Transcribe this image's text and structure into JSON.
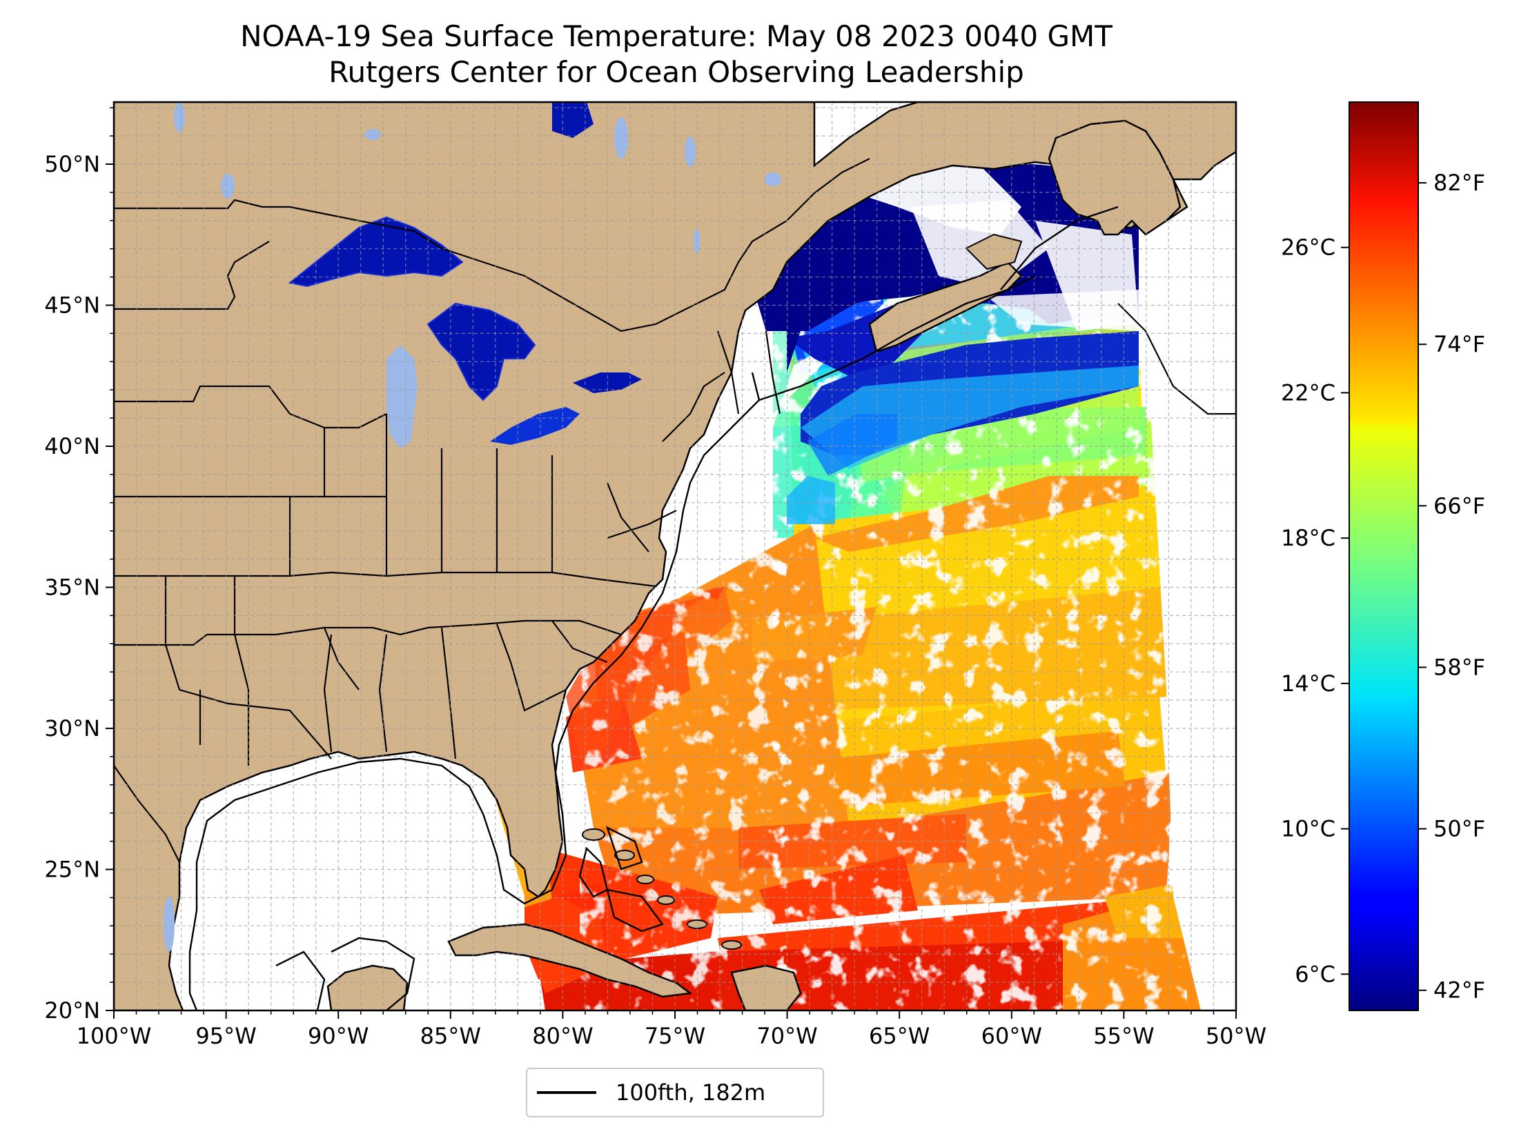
{
  "title": "NOAA-19 Sea Surface Temperature: May 08 2023 0040 GMT",
  "subtitle": "Rutgers Center for Ocean Observing Leadership",
  "map": {
    "lon_range": [
      -100,
      -50
    ],
    "lat_range": [
      20,
      52.2
    ],
    "grid": "on",
    "land_color": "#d2b48c",
    "lake_color": "#9bb8e8",
    "lon_ticks": [
      {
        "value": -100,
        "label": "100°W"
      },
      {
        "value": -95,
        "label": "95°W"
      },
      {
        "value": -90,
        "label": "90°W"
      },
      {
        "value": -85,
        "label": "85°W"
      },
      {
        "value": -80,
        "label": "80°W"
      },
      {
        "value": -75,
        "label": "75°W"
      },
      {
        "value": -70,
        "label": "70°W"
      },
      {
        "value": -65,
        "label": "65°W"
      },
      {
        "value": -60,
        "label": "60°W"
      },
      {
        "value": -55,
        "label": "55°W"
      },
      {
        "value": -50,
        "label": "50°W"
      }
    ],
    "lat_ticks": [
      {
        "value": 20,
        "label": "20°N"
      },
      {
        "value": 25,
        "label": "25°N"
      },
      {
        "value": 30,
        "label": "30°N"
      },
      {
        "value": 35,
        "label": "35°N"
      },
      {
        "value": 40,
        "label": "40°N"
      },
      {
        "value": 45,
        "label": "45°N"
      },
      {
        "value": 50,
        "label": "50°N"
      }
    ]
  },
  "colorbar": {
    "colormap": "jet",
    "range_c": [
      5,
      30
    ],
    "celsius_ticks": [
      {
        "value": 6,
        "label": "6°C"
      },
      {
        "value": 10,
        "label": "10°C"
      },
      {
        "value": 14,
        "label": "14°C"
      },
      {
        "value": 18,
        "label": "18°C"
      },
      {
        "value": 22,
        "label": "22°C"
      },
      {
        "value": 26,
        "label": "26°C"
      }
    ],
    "fahrenheit_ticks": [
      {
        "value": 42,
        "label": "42°F"
      },
      {
        "value": 50,
        "label": "50°F"
      },
      {
        "value": 58,
        "label": "58°F"
      },
      {
        "value": 66,
        "label": "66°F"
      },
      {
        "value": 74,
        "label": "74°F"
      },
      {
        "value": 82,
        "label": "82°F"
      }
    ]
  },
  "legend": {
    "label": "100fth, 182m",
    "line_color": "#000000"
  }
}
